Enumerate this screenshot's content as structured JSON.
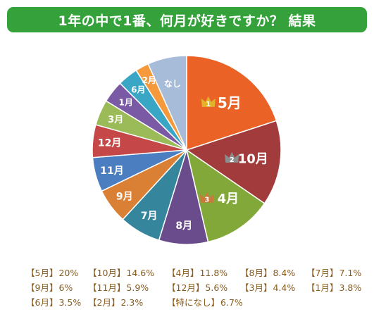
{
  "title": "1年の中で1番、何月が好きですか？ 結果",
  "chart_data": {
    "type": "pie",
    "slices": [
      {
        "label": "5月",
        "value": 20,
        "color": "#ea6226",
        "rank": "1"
      },
      {
        "label": "10月",
        "value": 14.6,
        "color": "#a23c3c",
        "rank": "2"
      },
      {
        "label": "4月",
        "value": 11.8,
        "color": "#83a83a",
        "rank": "3"
      },
      {
        "label": "8月",
        "value": 8.4,
        "color": "#6a4b8b"
      },
      {
        "label": "7月",
        "value": 7.1,
        "color": "#35869d"
      },
      {
        "label": "9月",
        "value": 6,
        "color": "#d98034"
      },
      {
        "label": "11月",
        "value": 5.9,
        "color": "#4a7ec0"
      },
      {
        "label": "12月",
        "value": 5.6,
        "color": "#c54747"
      },
      {
        "label": "3月",
        "value": 4.4,
        "color": "#9bbb59"
      },
      {
        "label": "1月",
        "value": 3.8,
        "color": "#7a5aa5"
      },
      {
        "label": "6月",
        "value": 3.5,
        "color": "#3aa6c5"
      },
      {
        "label": "2月",
        "value": 2.3,
        "color": "#f59a3c"
      },
      {
        "label": "なし",
        "value": 6.7,
        "color": "#a7bcd9"
      }
    ],
    "rank_icon_colors": {
      "1": "#e3b32b",
      "2": "#8d8d8d",
      "3": "#c87a3a"
    }
  },
  "legend": [
    [
      {
        "label": "【5月】",
        "pct": "20%"
      },
      {
        "label": "【10月】",
        "pct": "14.6%"
      },
      {
        "label": "【4月】",
        "pct": "11.8%"
      },
      {
        "label": "【8月】",
        "pct": "8.4%"
      },
      {
        "label": "【7月】",
        "pct": "7.1%"
      }
    ],
    [
      {
        "label": "【9月】",
        "pct": "6%"
      },
      {
        "label": "【11月】",
        "pct": "5.9%"
      },
      {
        "label": "【12月】",
        "pct": "5.6%"
      },
      {
        "label": "【3月】",
        "pct": "4.4%"
      },
      {
        "label": "【1月】",
        "pct": "3.8%"
      }
    ],
    [
      {
        "label": "【6月】",
        "pct": "3.5%"
      },
      {
        "label": "【2月】",
        "pct": "2.3%"
      },
      {
        "label": "【特になし】",
        "pct": "6.7%"
      }
    ]
  ]
}
